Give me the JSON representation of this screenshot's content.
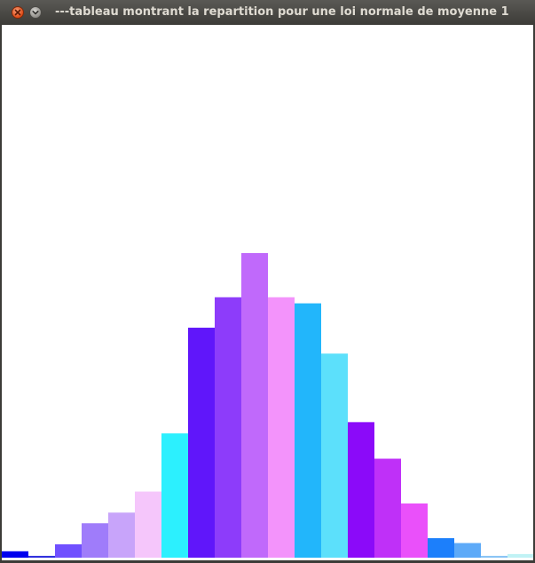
{
  "window": {
    "title": "---tableau montrant la repartition pour une loi normale de moyenne 1",
    "close_icon": "close-icon",
    "menu_icon": "chevron-down-icon"
  },
  "chart_data": {
    "type": "bar",
    "title": "",
    "xlabel": "",
    "ylabel": "",
    "grid": false,
    "legend": "none",
    "ylim": [
      0,
      1
    ],
    "values": [
      0.021,
      0.006,
      0.044,
      0.113,
      0.148,
      0.217,
      0.408,
      0.755,
      0.855,
      1.0,
      0.855,
      0.835,
      0.67,
      0.445,
      0.325,
      0.178,
      0.064,
      0.048,
      0.006,
      0.012
    ],
    "colors": [
      "#0000ee",
      "#3030dd",
      "#7050ff",
      "#9f7cfa",
      "#c8a4fa",
      "#f5c6fb",
      "#2cf0fe",
      "#6016fa",
      "#8d3cfa",
      "#c069fb",
      "#f393fb",
      "#22b6fb",
      "#5ce0fb",
      "#8b0af9",
      "#bf30f8",
      "#ea50fa",
      "#1c7ffb",
      "#5daaf8",
      "#8ac4f5",
      "#c0f2f5"
    ]
  }
}
